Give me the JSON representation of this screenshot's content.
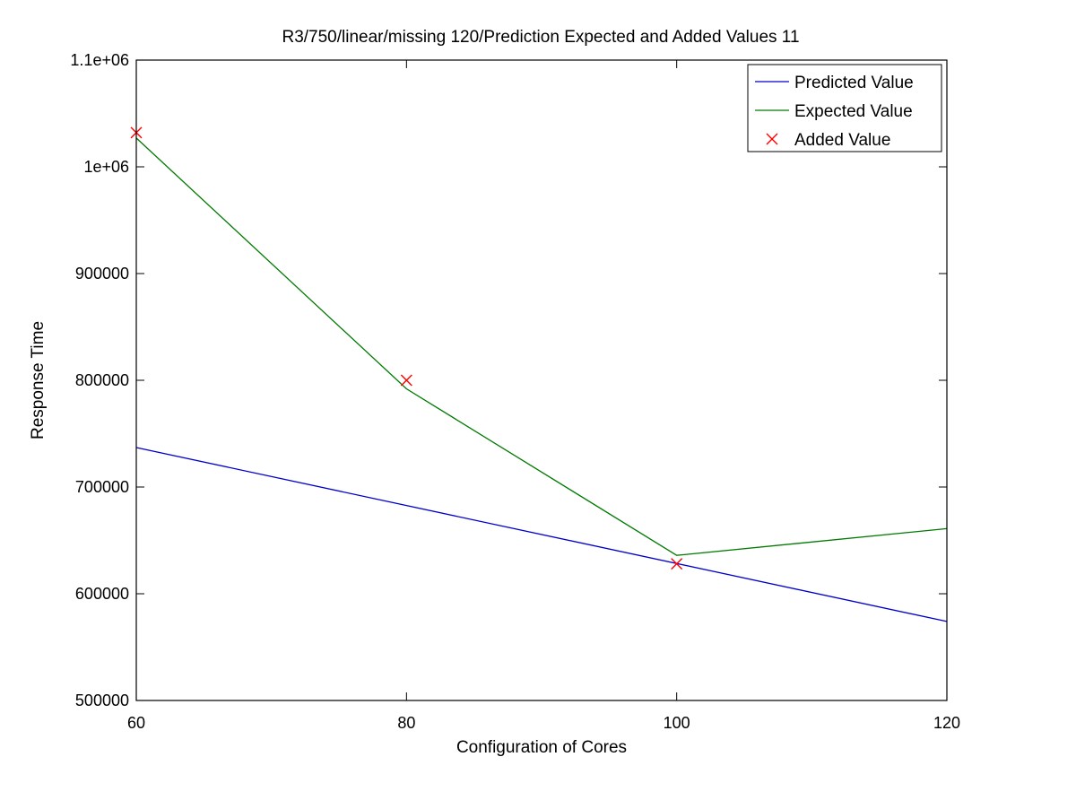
{
  "chart_data": {
    "type": "line",
    "title": "R3/750/linear/missing 120/Prediction Expected and Added Values 11",
    "xlabel": "Configuration of Cores",
    "ylabel": "Response Time",
    "xlim": [
      60,
      120
    ],
    "ylim": [
      500000,
      1100000
    ],
    "x_ticks": [
      60,
      80,
      100,
      120
    ],
    "x_tick_labels": [
      "60",
      "80",
      "100",
      "120"
    ],
    "y_ticks": [
      500000,
      600000,
      700000,
      800000,
      900000,
      1000000,
      1100000
    ],
    "y_tick_labels": [
      "500000",
      "600000",
      "700000",
      "800000",
      "900000",
      "1e+06",
      "1.1e+06"
    ],
    "grid": false,
    "legend_position": "top-right",
    "series": [
      {
        "name": "Predicted Value",
        "kind": "line",
        "color": "#0000cc",
        "x": [
          60,
          120
        ],
        "y": [
          737000,
          574000
        ]
      },
      {
        "name": "Expected Value",
        "kind": "line",
        "color": "#007a00",
        "x": [
          60,
          80,
          100,
          120
        ],
        "y": [
          1027000,
          792000,
          636000,
          661000
        ]
      },
      {
        "name": "Added Value",
        "kind": "marker",
        "color": "#ff0000",
        "x": [
          60,
          80,
          100
        ],
        "y": [
          1032000,
          800000,
          628000
        ]
      }
    ]
  }
}
